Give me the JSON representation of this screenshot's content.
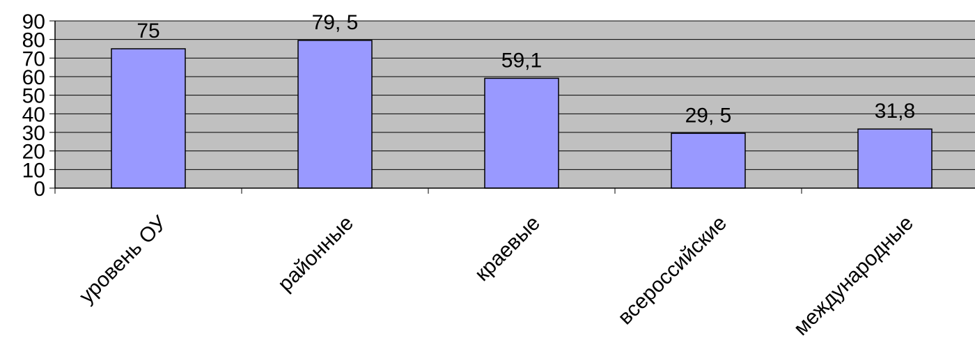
{
  "chart_data": {
    "type": "bar",
    "categories": [
      "уровень ОУ",
      "районные",
      "краевые",
      "всероссийские",
      "международные"
    ],
    "values": [
      75,
      79.5,
      59.1,
      29.5,
      31.8
    ],
    "data_labels": [
      "75",
      "79, 5",
      "59,1",
      "29, 5",
      "31,8"
    ],
    "y_ticks": [
      0,
      10,
      20,
      30,
      40,
      50,
      60,
      70,
      80,
      90
    ],
    "ylim": [
      0,
      90
    ],
    "title": "",
    "xlabel": "",
    "ylabel": "",
    "grid": true,
    "legend": "none",
    "colors": {
      "bar": "#9999ff",
      "bar_edge": "#000000",
      "plot_bg": "#c0c0c0",
      "gridline": "#000000"
    }
  }
}
